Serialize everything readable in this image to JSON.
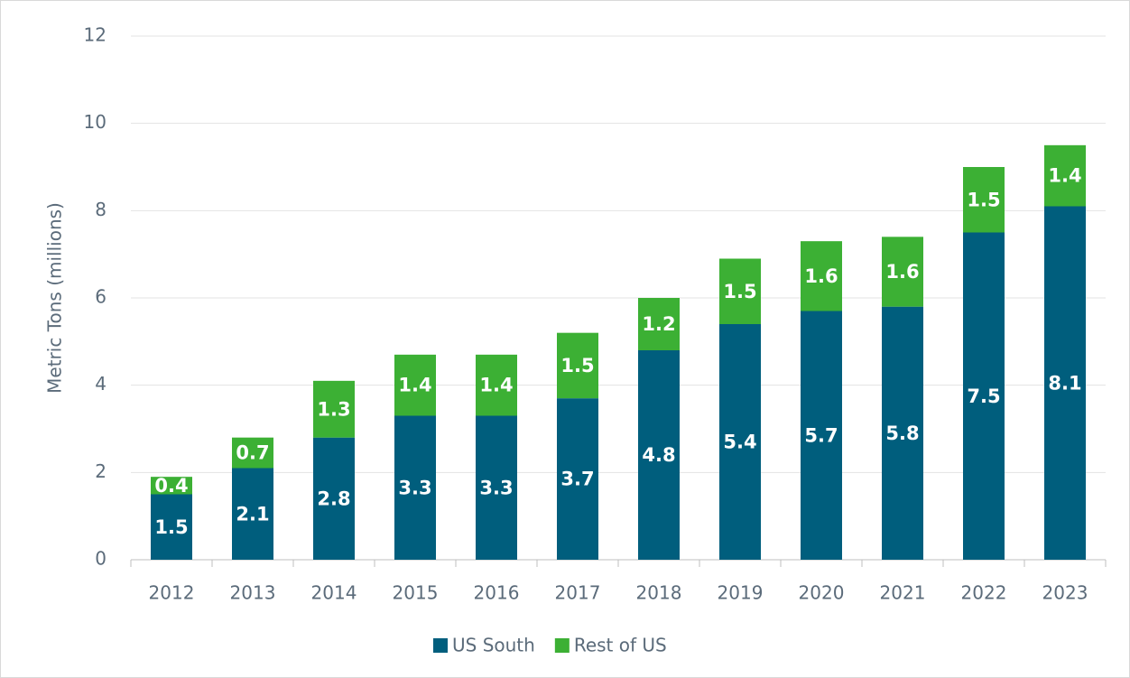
{
  "chart_data": {
    "type": "stacked_bar",
    "y_label": "Metric Tons (millions)",
    "categories": [
      "2012",
      "2013",
      "2014",
      "2015",
      "2016",
      "2017",
      "2018",
      "2019",
      "2020",
      "2021",
      "2022",
      "2023"
    ],
    "series": [
      {
        "name": "US South",
        "color": "#005e7d",
        "values": [
          1.5,
          2.1,
          2.8,
          3.3,
          3.3,
          3.7,
          4.8,
          5.4,
          5.7,
          5.8,
          7.5,
          8.1
        ]
      },
      {
        "name": "Rest of US",
        "color": "#3cb034",
        "values": [
          0.4,
          0.7,
          1.3,
          1.4,
          1.4,
          1.5,
          1.2,
          1.5,
          1.6,
          1.6,
          1.5,
          1.4
        ]
      }
    ],
    "ylim": [
      0,
      12
    ],
    "yticks": [
      0,
      2,
      4,
      6,
      8,
      10,
      12
    ],
    "grid": true,
    "legend": "bottom"
  }
}
